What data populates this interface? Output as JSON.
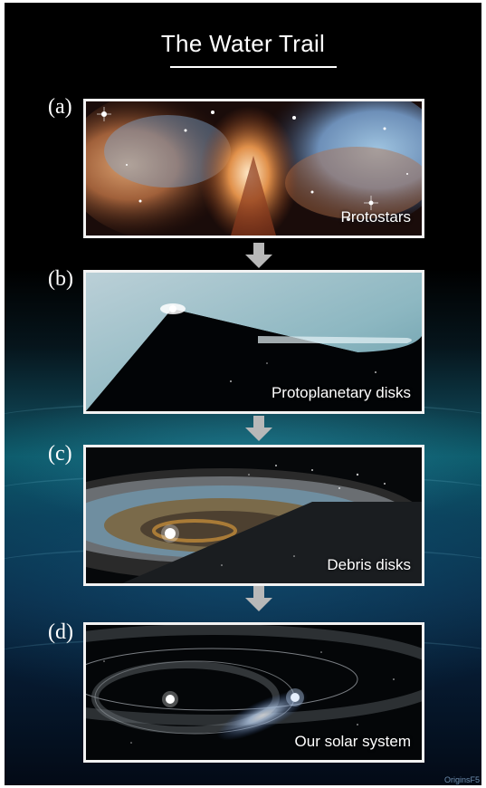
{
  "title": "The Water Trail",
  "panels": [
    {
      "letter": "(a)",
      "caption": "Protostars",
      "icon": "nebula-image"
    },
    {
      "letter": "(b)",
      "caption": "Protoplanetary disks",
      "icon": "protoplanetary-disk-image"
    },
    {
      "letter": "(c)",
      "caption": "Debris disks",
      "icon": "debris-disk-image"
    },
    {
      "letter": "(d)",
      "caption": "Our solar system",
      "icon": "solar-system-image"
    }
  ],
  "arrows": [
    "down-arrow",
    "down-arrow",
    "down-arrow"
  ],
  "credit": "OriginsF5",
  "colors": {
    "background_top": "#000000",
    "background_water": "#0c5a6a",
    "panel_border": "#f2f2f2",
    "arrow": "#b8b8b8",
    "text": "#ffffff"
  }
}
